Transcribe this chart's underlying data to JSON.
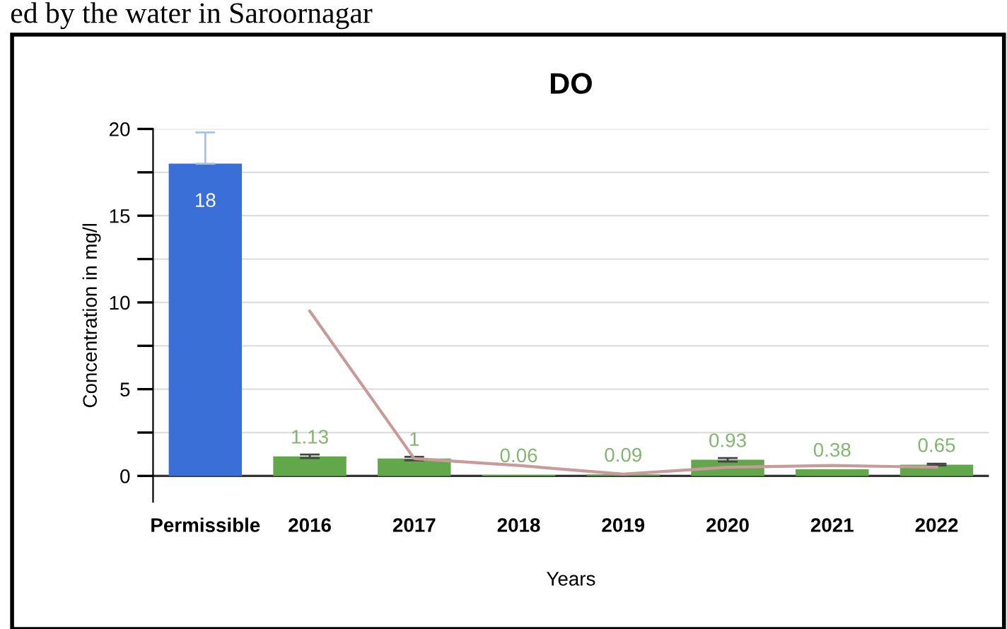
{
  "chart_data": {
    "type": "bar",
    "title": "DO",
    "xlabel": "Years",
    "ylabel": "Concentration in mg/l",
    "annotations": [
      "ed by the water in Saroornagar"
    ],
    "categories": [
      "Permissible",
      "2016",
      "2017",
      "2018",
      "2019",
      "2020",
      "2021",
      "2022"
    ],
    "series": [
      {
        "colors": [
          "#3a6fd8",
          "#62a84a",
          "#62a84a",
          "#62a84a",
          "#62a84a",
          "#62a84a",
          "#62a84a",
          "#62a84a"
        ],
        "values": [
          18,
          1.13,
          1,
          0.06,
          0.09,
          0.93,
          0.38,
          0.65
        ],
        "errors": [
          [
            18,
            19.8
          ],
          0.1,
          0.1,
          null,
          null,
          0.1,
          null,
          0.05
        ],
        "value_labels": [
          "18",
          "1.13",
          "1",
          "0.06",
          "0.09",
          "0.93",
          "0.38",
          "0.65"
        ]
      },
      {
        "type": "line",
        "color": "#c89a9a",
        "values": [
          null,
          9.5,
          1.0,
          0.6,
          0.1,
          0.5,
          0.6,
          0.5
        ]
      }
    ],
    "ylim": [
      -1.5,
      20
    ],
    "yticks": [
      0,
      {
        "value": 2.5,
        "label": null
      },
      5,
      {
        "value": 7.5,
        "label": null
      },
      10,
      {
        "value": 12.5,
        "label": null
      },
      15,
      {
        "value": 17.5,
        "label": null
      },
      20
    ],
    "grid": "y",
    "legend": false
  }
}
